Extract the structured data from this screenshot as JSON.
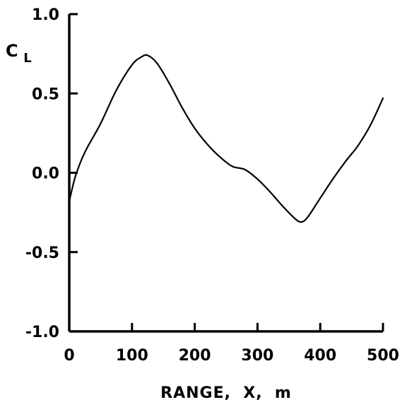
{
  "chart_data": {
    "type": "line",
    "title": "",
    "xlabel": "RANGE,  X,  m",
    "ylabel_main": "C",
    "ylabel_sub": "L",
    "xlim": [
      0,
      500
    ],
    "ylim": [
      -1.0,
      1.0
    ],
    "x_ticks": [
      0,
      100,
      200,
      300,
      400,
      500
    ],
    "x_tick_labels": [
      "0",
      "100",
      "200",
      "300",
      "400",
      "500"
    ],
    "y_ticks": [
      1.0,
      0.5,
      0.0,
      -0.5,
      -1.0
    ],
    "y_tick_labels": [
      "1.0",
      "0.5",
      "0.0",
      "-0.5",
      "-1.0"
    ],
    "grid": false,
    "line_color": "#000000",
    "series": [
      {
        "x": [
          0,
          10,
          25,
          50,
          75,
          100,
          115,
          125,
          140,
          160,
          180,
          200,
          220,
          240,
          260,
          280,
          300,
          320,
          340,
          360,
          370,
          380,
          400,
          420,
          440,
          460,
          480,
          500
        ],
        "y": [
          -0.18,
          -0.02,
          0.13,
          0.31,
          0.52,
          0.68,
          0.73,
          0.74,
          0.69,
          0.56,
          0.41,
          0.28,
          0.18,
          0.1,
          0.04,
          0.02,
          -0.04,
          -0.12,
          -0.21,
          -0.29,
          -0.31,
          -0.28,
          -0.16,
          -0.04,
          0.07,
          0.17,
          0.3,
          0.47
        ]
      }
    ]
  }
}
